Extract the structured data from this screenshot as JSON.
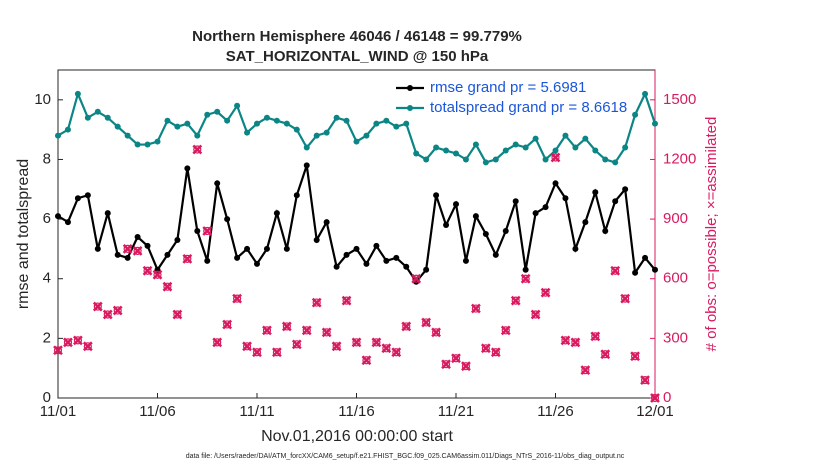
{
  "chart_data": {
    "type": "line",
    "title": "Northern Hemisphere 46046 / 46148 = 99.779%",
    "subtitle": "SAT_HORIZONTAL_WIND @ 150 hPa",
    "xlabel": "Nov.01,2016 00:00:00 start",
    "ylabel": "rmse and totalspread",
    "y2label": "# of obs: o=possible; ×=assimilated",
    "footnote": "data file: /Users/raeder/DAI/ATM_forcXX/CAM6_setup/f.e21.FHIST_BGC.f09_025.CAM6assim.011/Diags_NTrS_2016-11/obs_diag_output.nc",
    "x": [
      0,
      0.5,
      1,
      1.5,
      2,
      2.5,
      3,
      3.5,
      4,
      4.5,
      5,
      5.5,
      6,
      6.5,
      7,
      7.5,
      8,
      8.5,
      9,
      9.5,
      10,
      10.5,
      11,
      11.5,
      12,
      12.5,
      13,
      13.5,
      14,
      14.5,
      15,
      15.5,
      16,
      16.5,
      17,
      17.5,
      18,
      18.5,
      19,
      19.5,
      20,
      20.5,
      21,
      21.5,
      22,
      22.5,
      23,
      23.5,
      24,
      24.5,
      25,
      25.5,
      26,
      26.5,
      27,
      27.5,
      28,
      28.5,
      29,
      29.5,
      30
    ],
    "xlim": [
      0,
      30
    ],
    "xticks": [
      {
        "value": 0,
        "label": "11/01"
      },
      {
        "value": 5,
        "label": "11/06"
      },
      {
        "value": 10,
        "label": "11/11"
      },
      {
        "value": 15,
        "label": "11/16"
      },
      {
        "value": 20,
        "label": "11/21"
      },
      {
        "value": 25,
        "label": "11/26"
      },
      {
        "value": 30,
        "label": "12/01"
      }
    ],
    "ylim": [
      0,
      11
    ],
    "yticks": [
      0,
      2,
      4,
      6,
      8,
      10
    ],
    "y2lim": [
      0,
      1650
    ],
    "y2ticks": [
      0,
      300,
      600,
      900,
      1200,
      1500
    ],
    "legend": "upper right",
    "series": [
      {
        "name": "rmse grand pr = 5.6981",
        "color": "#000000",
        "marker": "circle",
        "values": [
          6.1,
          5.9,
          6.7,
          6.8,
          5.0,
          6.2,
          4.8,
          4.7,
          5.4,
          5.1,
          4.3,
          4.8,
          5.3,
          7.7,
          5.6,
          4.6,
          7.2,
          6.0,
          4.7,
          5.0,
          4.5,
          5.0,
          6.2,
          5.0,
          6.8,
          7.8,
          5.3,
          5.9,
          4.4,
          4.8,
          5.0,
          4.5,
          5.1,
          4.6,
          4.7,
          4.4,
          3.9,
          4.3,
          6.8,
          5.8,
          6.5,
          4.6,
          6.1,
          5.5,
          4.8,
          5.6,
          6.6,
          4.3,
          6.2,
          6.4,
          7.2,
          6.7,
          5.0,
          5.9,
          6.9,
          5.6,
          6.6,
          7.0,
          4.2,
          4.7,
          4.3
        ]
      },
      {
        "name": "totalspread grand pr = 8.6618",
        "color": "#0b8585",
        "marker": "circle",
        "values": [
          8.8,
          9.0,
          10.2,
          9.4,
          9.6,
          9.4,
          9.1,
          8.8,
          8.5,
          8.5,
          8.6,
          9.3,
          9.1,
          9.2,
          8.8,
          9.5,
          9.6,
          9.3,
          9.8,
          8.9,
          9.2,
          9.4,
          9.3,
          9.2,
          9.0,
          8.4,
          8.8,
          8.9,
          9.4,
          9.3,
          8.6,
          8.8,
          9.2,
          9.3,
          9.1,
          9.2,
          8.2,
          8.0,
          8.4,
          8.3,
          8.2,
          8.0,
          8.5,
          7.9,
          8.0,
          8.3,
          8.5,
          8.4,
          8.7,
          8.0,
          8.3,
          8.8,
          8.4,
          8.7,
          8.3,
          8.0,
          7.9,
          8.4,
          9.5,
          10.2,
          9.2
        ]
      },
      {
        "axis": "y2",
        "color": "#d81b60",
        "marker": "o",
        "values": [
          240,
          280,
          290,
          260,
          460,
          420,
          440,
          750,
          740,
          640,
          620,
          560,
          420,
          700,
          1250,
          840,
          280,
          370,
          500,
          260,
          230,
          340,
          230,
          360,
          270,
          340,
          480,
          330,
          260,
          490,
          280,
          190,
          280,
          250,
          230,
          360,
          600,
          380,
          330,
          170,
          200,
          160,
          450,
          250,
          230,
          340,
          490,
          600,
          420,
          530,
          1210,
          290,
          280,
          140,
          310,
          220,
          640,
          500,
          210,
          90,
          0
        ]
      },
      {
        "axis": "y2",
        "color": "#d81b60",
        "marker": "x",
        "values": [
          240,
          280,
          290,
          260,
          460,
          420,
          440,
          750,
          740,
          640,
          620,
          560,
          420,
          700,
          1250,
          840,
          280,
          370,
          500,
          260,
          230,
          340,
          230,
          360,
          270,
          340,
          480,
          330,
          260,
          490,
          280,
          190,
          280,
          250,
          230,
          360,
          600,
          380,
          330,
          170,
          200,
          160,
          450,
          250,
          230,
          340,
          490,
          600,
          420,
          530,
          1210,
          290,
          280,
          140,
          310,
          220,
          640,
          500,
          210,
          90,
          0
        ]
      }
    ]
  }
}
